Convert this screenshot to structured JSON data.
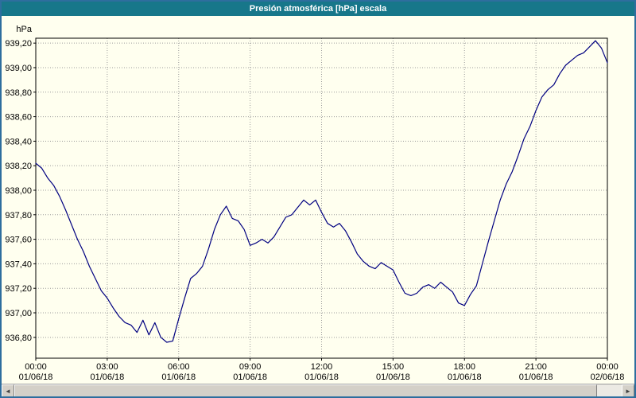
{
  "window": {
    "title": "Presión atmosférica [hPa] escala"
  },
  "y_axis_unit": "hPa",
  "colors": {
    "titlebar": "#17778A",
    "window_border": "#2E6E9E",
    "plot_background": "#FFFFEF",
    "line": "#000080",
    "grid": "#9C9C9C"
  },
  "scrollbar": {
    "left_arrow": "◄",
    "right_arrow": "►"
  },
  "chart_data": {
    "type": "line",
    "title": "Presión atmosférica [hPa] escala",
    "ylabel": "hPa",
    "xlabel": "",
    "series_name": "Presión atmosférica",
    "line_color": "#000080",
    "grid": true,
    "legend_position": "none",
    "ylim": [
      936.63,
      939.24
    ],
    "xlim_hours": [
      0,
      24
    ],
    "y_ticks": [
      {
        "value": 939.2,
        "label": "939,20"
      },
      {
        "value": 939.0,
        "label": "939,00"
      },
      {
        "value": 938.8,
        "label": "938,80"
      },
      {
        "value": 938.6,
        "label": "938,60"
      },
      {
        "value": 938.4,
        "label": "938,40"
      },
      {
        "value": 938.2,
        "label": "938,20"
      },
      {
        "value": 938.0,
        "label": "938,00"
      },
      {
        "value": 937.8,
        "label": "937,80"
      },
      {
        "value": 937.6,
        "label": "937,60"
      },
      {
        "value": 937.4,
        "label": "937,40"
      },
      {
        "value": 937.2,
        "label": "937,20"
      },
      {
        "value": 937.0,
        "label": "937,00"
      },
      {
        "value": 936.8,
        "label": "936,80"
      }
    ],
    "x_ticks": [
      {
        "hour": 0,
        "time": "00:00",
        "date": "01/06/18"
      },
      {
        "hour": 3,
        "time": "03:00",
        "date": "01/06/18"
      },
      {
        "hour": 6,
        "time": "06:00",
        "date": "01/06/18"
      },
      {
        "hour": 9,
        "time": "09:00",
        "date": "01/06/18"
      },
      {
        "hour": 12,
        "time": "12:00",
        "date": "01/06/18"
      },
      {
        "hour": 15,
        "time": "15:00",
        "date": "01/06/18"
      },
      {
        "hour": 18,
        "time": "18:00",
        "date": "01/06/18"
      },
      {
        "hour": 21,
        "time": "21:00",
        "date": "01/06/18"
      },
      {
        "hour": 24,
        "time": "00:00",
        "date": "02/06/18"
      }
    ],
    "x_hours_start": 0,
    "x_hours_step": 0.25,
    "values": [
      938.22,
      938.18,
      938.1,
      938.04,
      937.95,
      937.84,
      937.72,
      937.6,
      937.5,
      937.38,
      937.28,
      937.18,
      937.12,
      937.04,
      936.97,
      936.92,
      936.9,
      936.84,
      936.94,
      936.82,
      936.92,
      936.8,
      936.76,
      936.77,
      936.95,
      937.12,
      937.28,
      937.32,
      937.38,
      937.52,
      937.68,
      937.8,
      937.87,
      937.77,
      937.75,
      937.68,
      937.55,
      937.57,
      937.6,
      937.57,
      937.62,
      937.7,
      937.78,
      937.8,
      937.86,
      937.92,
      937.88,
      937.92,
      937.82,
      937.73,
      937.7,
      937.73,
      937.67,
      937.58,
      937.48,
      937.42,
      937.38,
      937.36,
      937.41,
      937.38,
      937.35,
      937.25,
      937.16,
      937.14,
      937.16,
      937.21,
      937.23,
      937.2,
      937.25,
      937.21,
      937.17,
      937.08,
      937.06,
      937.15,
      937.22,
      937.4,
      937.58,
      937.75,
      937.92,
      938.05,
      938.15,
      938.28,
      938.42,
      938.52,
      938.65,
      938.76,
      938.82,
      938.86,
      938.95,
      939.02,
      939.06,
      939.1,
      939.12,
      939.17,
      939.22,
      939.16,
      939.04
    ]
  }
}
